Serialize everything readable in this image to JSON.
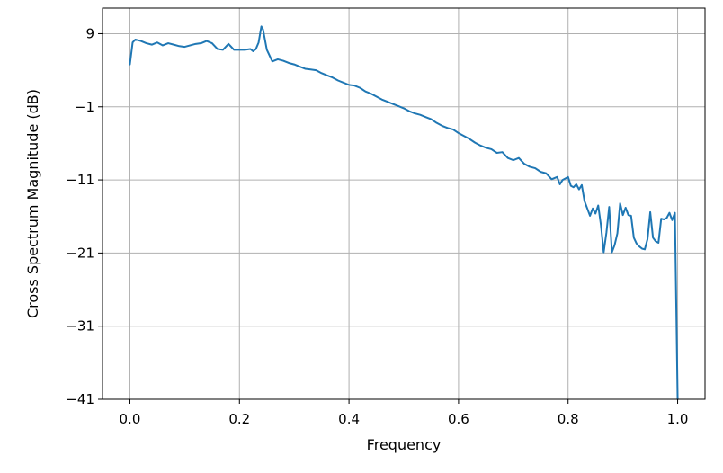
{
  "chart_data": {
    "type": "line",
    "title": "",
    "xlabel": "Frequency",
    "ylabel": "Cross Spectrum Magnitude (dB)",
    "xlim": [
      -0.05,
      1.05
    ],
    "ylim": [
      -41,
      12.5
    ],
    "xticks": [
      0.0,
      0.2,
      0.4,
      0.6,
      0.8,
      1.0
    ],
    "xtick_labels": [
      "0.0",
      "0.2",
      "0.4",
      "0.6",
      "0.8",
      "1.0"
    ],
    "yticks": [
      9,
      -1,
      -11,
      -21,
      -31,
      -41
    ],
    "ytick_labels": [
      "9",
      "−1",
      "−11",
      "−21",
      "−31",
      "−41"
    ],
    "grid": true,
    "line_color": "#1f77b4",
    "series": [
      {
        "name": "",
        "x": [
          0.0,
          0.005,
          0.01,
          0.02,
          0.03,
          0.04,
          0.05,
          0.055,
          0.06,
          0.07,
          0.08,
          0.09,
          0.1,
          0.11,
          0.12,
          0.13,
          0.14,
          0.15,
          0.16,
          0.17,
          0.18,
          0.19,
          0.2,
          0.21,
          0.22,
          0.225,
          0.23,
          0.235,
          0.24,
          0.243,
          0.25,
          0.26,
          0.27,
          0.28,
          0.29,
          0.3,
          0.31,
          0.32,
          0.33,
          0.34,
          0.35,
          0.36,
          0.37,
          0.38,
          0.39,
          0.4,
          0.41,
          0.42,
          0.43,
          0.44,
          0.45,
          0.46,
          0.47,
          0.48,
          0.49,
          0.5,
          0.51,
          0.52,
          0.53,
          0.54,
          0.55,
          0.56,
          0.57,
          0.58,
          0.59,
          0.6,
          0.61,
          0.62,
          0.63,
          0.64,
          0.65,
          0.66,
          0.67,
          0.68,
          0.69,
          0.7,
          0.71,
          0.72,
          0.73,
          0.74,
          0.75,
          0.76,
          0.77,
          0.78,
          0.785,
          0.79,
          0.8,
          0.805,
          0.81,
          0.815,
          0.82,
          0.825,
          0.83,
          0.84,
          0.845,
          0.85,
          0.855,
          0.86,
          0.865,
          0.87,
          0.875,
          0.88,
          0.885,
          0.89,
          0.895,
          0.9,
          0.905,
          0.91,
          0.915,
          0.92,
          0.925,
          0.93,
          0.935,
          0.94,
          0.945,
          0.95,
          0.955,
          0.96,
          0.965,
          0.97,
          0.975,
          0.98,
          0.985,
          0.99,
          0.995,
          1.0
        ],
        "y": [
          4.8,
          7.8,
          8.2,
          8.0,
          7.7,
          7.5,
          7.8,
          7.6,
          7.4,
          7.7,
          7.5,
          7.3,
          7.2,
          7.4,
          7.6,
          7.7,
          8.0,
          7.7,
          6.9,
          6.8,
          7.6,
          6.8,
          6.8,
          6.8,
          6.9,
          6.6,
          6.9,
          7.8,
          10.0,
          9.6,
          6.8,
          5.2,
          5.5,
          5.3,
          5.0,
          4.8,
          4.5,
          4.2,
          4.1,
          4.0,
          3.6,
          3.3,
          3.0,
          2.6,
          2.3,
          2.0,
          1.9,
          1.6,
          1.1,
          0.8,
          0.4,
          0.0,
          -0.3,
          -0.6,
          -0.9,
          -1.2,
          -1.6,
          -1.9,
          -2.1,
          -2.4,
          -2.7,
          -3.2,
          -3.6,
          -3.9,
          -4.1,
          -4.6,
          -5.0,
          -5.4,
          -5.9,
          -6.3,
          -6.6,
          -6.8,
          -7.3,
          -7.2,
          -8.0,
          -8.3,
          -8.0,
          -8.8,
          -9.2,
          -9.4,
          -9.9,
          -10.1,
          -10.9,
          -10.6,
          -11.6,
          -11.0,
          -10.6,
          -11.8,
          -12.0,
          -11.6,
          -12.3,
          -11.7,
          -13.9,
          -15.9,
          -14.9,
          -15.6,
          -14.5,
          -17.2,
          -20.9,
          -18.2,
          -14.7,
          -20.9,
          -19.9,
          -18.3,
          -14.2,
          -15.8,
          -14.8,
          -15.8,
          -15.9,
          -18.9,
          -19.7,
          -20.1,
          -20.4,
          -20.5,
          -19.1,
          -15.4,
          -18.9,
          -19.4,
          -19.6,
          -16.3,
          -16.4,
          -16.2,
          -15.5,
          -16.5,
          -15.5,
          -41.0
        ]
      }
    ]
  }
}
